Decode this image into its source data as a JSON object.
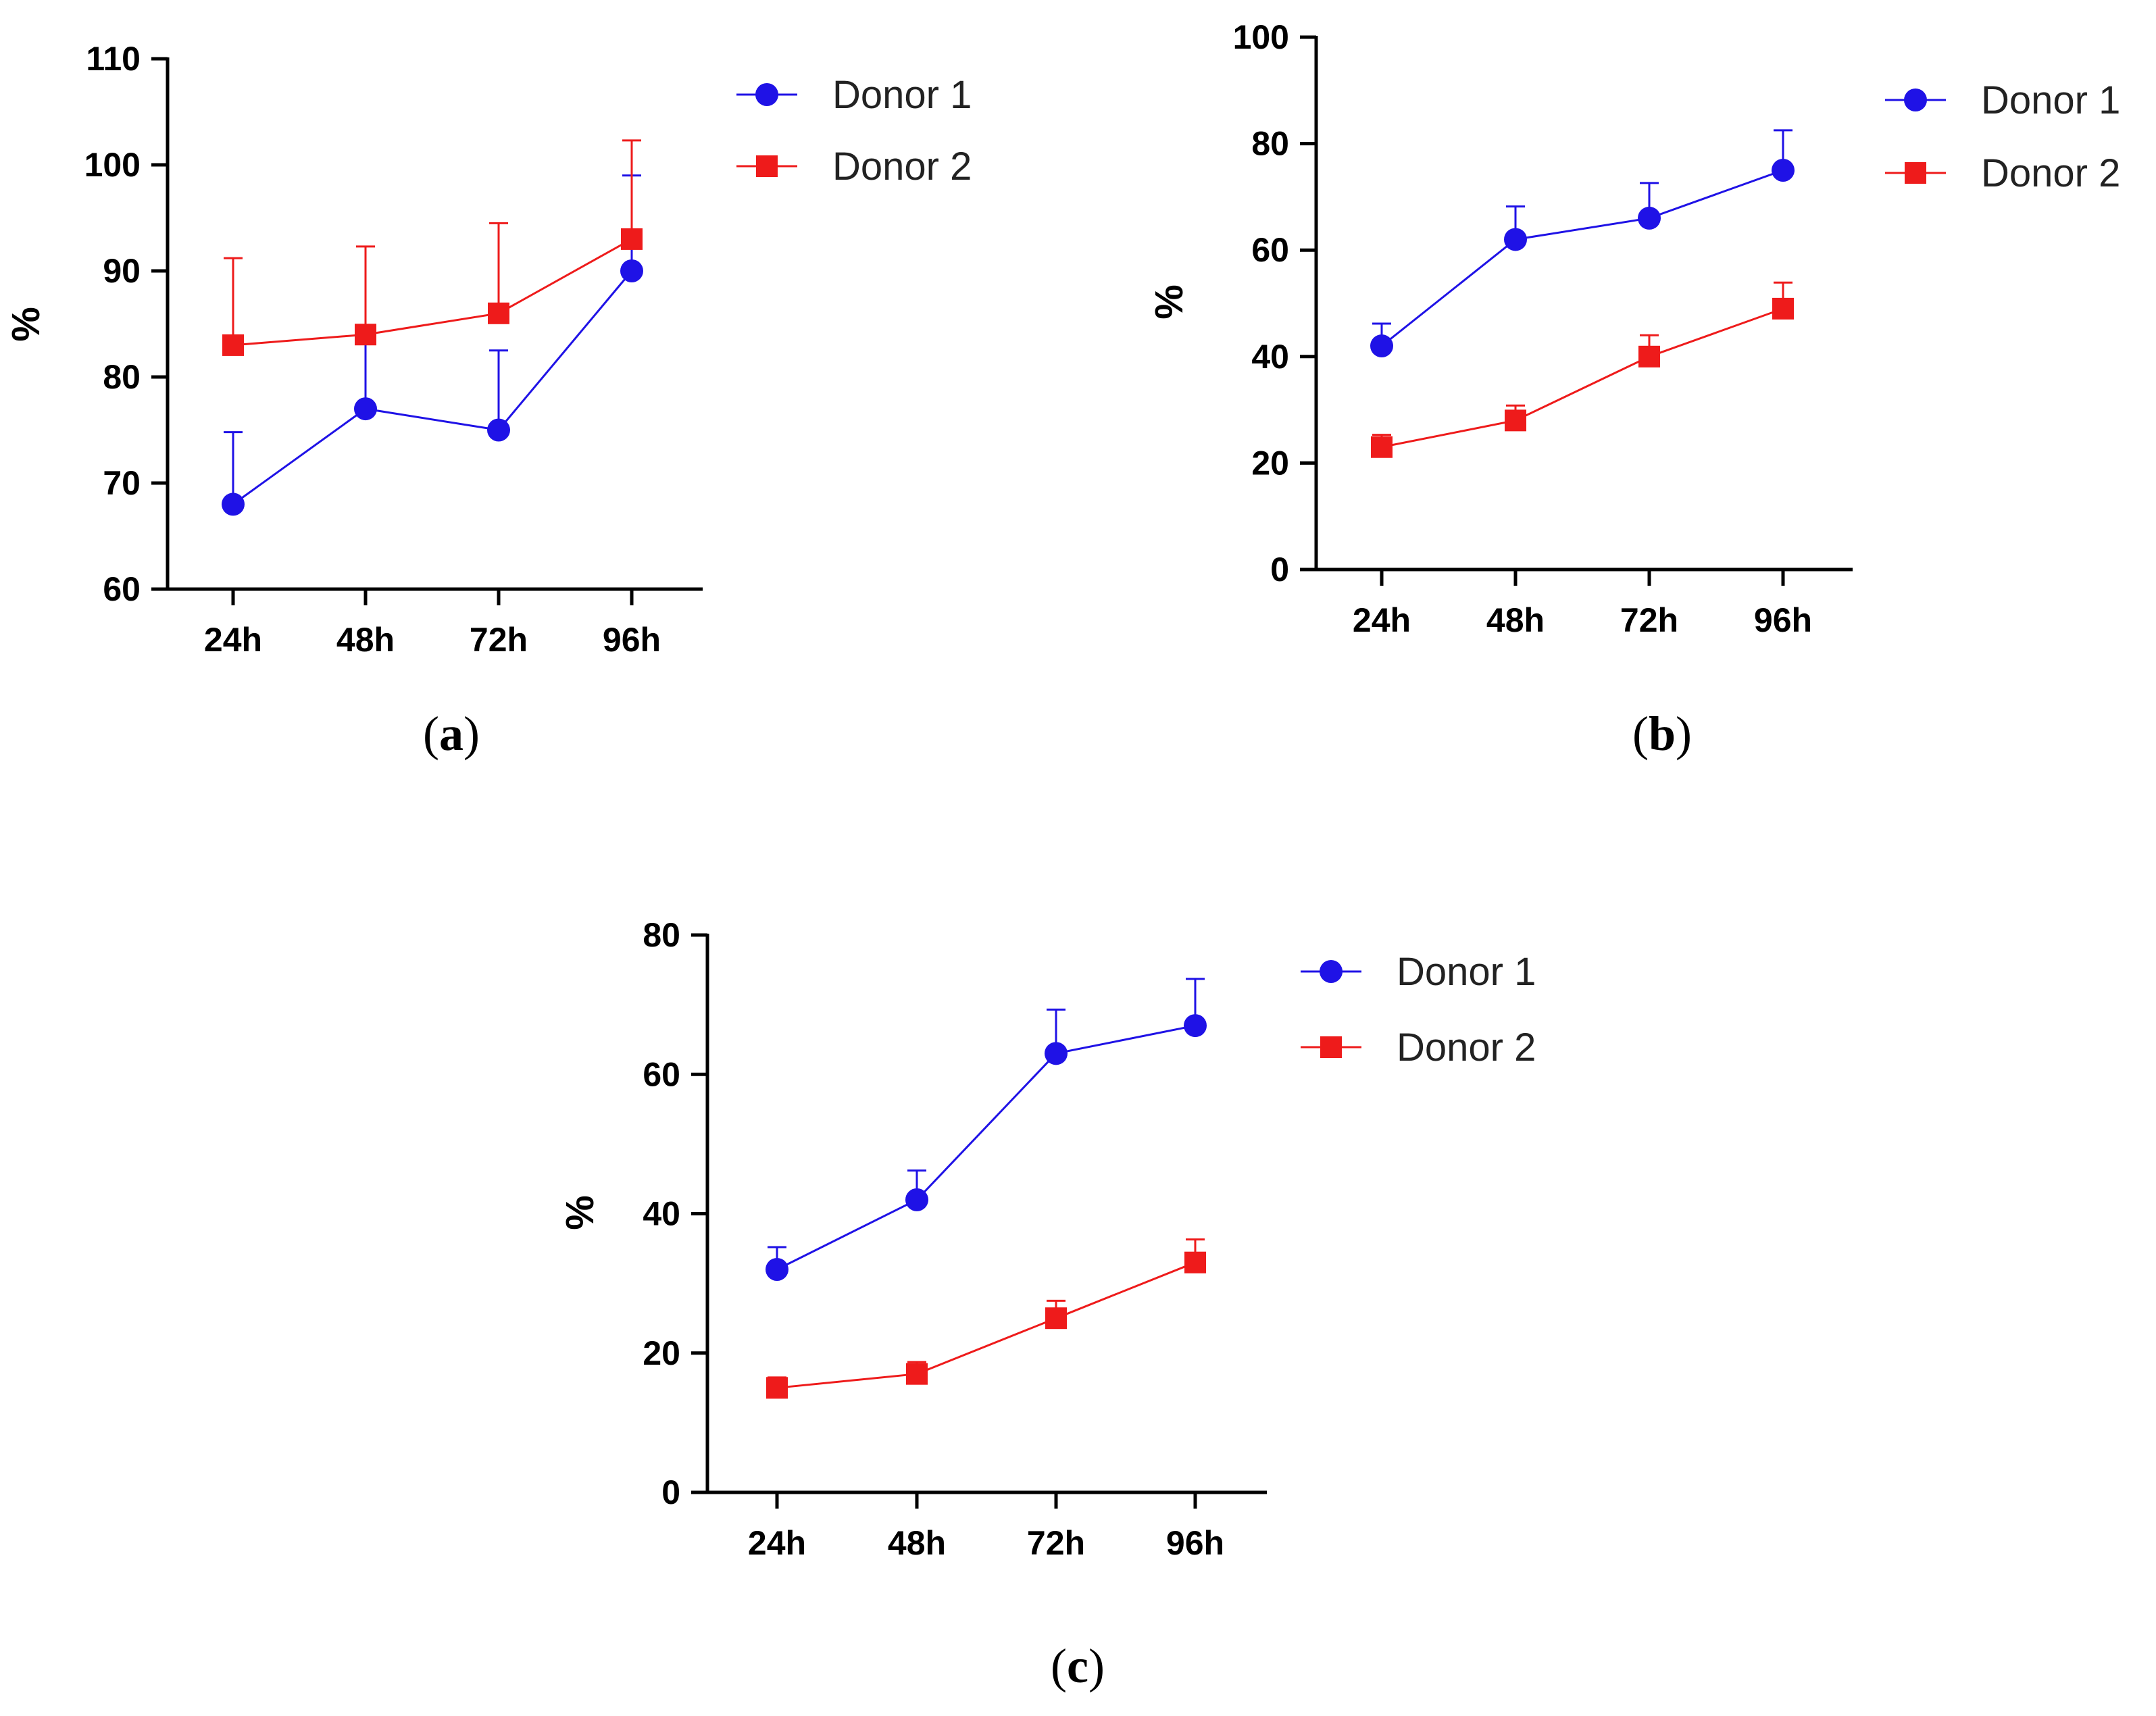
{
  "colors": {
    "donor1": "#1f12e6",
    "donor2": "#ee1b1b",
    "axis": "#000000"
  },
  "chart_data": [
    {
      "panel": "a",
      "type": "line",
      "ylabel": "%",
      "ylim": [
        60,
        110
      ],
      "yticks": [
        60,
        70,
        80,
        90,
        100,
        110
      ],
      "categories": [
        "24h",
        "48h",
        "72h",
        "96h"
      ],
      "series": [
        {
          "name": "Donor 1",
          "marker": "circle",
          "color": "#1f12e6",
          "values": [
            68,
            77,
            75,
            90
          ],
          "errors": [
            6.8,
            7.5,
            7.5,
            9
          ]
        },
        {
          "name": "Donor 2",
          "marker": "square",
          "color": "#ee1b1b",
          "values": [
            83,
            84,
            86,
            93
          ],
          "errors": [
            8.2,
            8.3,
            8.5,
            9.3
          ]
        }
      ],
      "legend": "top-right"
    },
    {
      "panel": "b",
      "type": "line",
      "ylabel": "%",
      "ylim": [
        0,
        100
      ],
      "yticks": [
        0,
        20,
        40,
        60,
        80,
        100
      ],
      "categories": [
        "24h",
        "48h",
        "72h",
        "96h"
      ],
      "series": [
        {
          "name": "Donor 1",
          "marker": "circle",
          "color": "#1f12e6",
          "values": [
            42,
            62,
            66,
            75
          ],
          "errors": [
            4.2,
            6.2,
            6.6,
            7.5
          ]
        },
        {
          "name": "Donor 2",
          "marker": "square",
          "color": "#ee1b1b",
          "values": [
            23,
            28,
            40,
            49
          ],
          "errors": [
            2.3,
            2.8,
            4,
            4.9
          ]
        }
      ],
      "legend": "top-right"
    },
    {
      "panel": "c",
      "type": "line",
      "ylabel": "%",
      "ylim": [
        0,
        80
      ],
      "yticks": [
        0,
        20,
        40,
        60,
        80
      ],
      "categories": [
        "24h",
        "48h",
        "72h",
        "96h"
      ],
      "series": [
        {
          "name": "Donor 1",
          "marker": "circle",
          "color": "#1f12e6",
          "values": [
            32,
            42,
            63,
            67
          ],
          "errors": [
            3.2,
            4.2,
            6.3,
            6.7
          ]
        },
        {
          "name": "Donor 2",
          "marker": "square",
          "color": "#ee1b1b",
          "values": [
            15,
            17,
            25,
            33
          ],
          "errors": [
            1.5,
            1.7,
            2.5,
            3.3
          ]
        }
      ],
      "legend": "top-right"
    }
  ],
  "panel_labels": [
    {
      "open": "(",
      "letter": "a",
      "close": ")"
    },
    {
      "open": "(",
      "letter": "b",
      "close": ")"
    },
    {
      "open": "(",
      "letter": "c",
      "close": ")"
    }
  ]
}
